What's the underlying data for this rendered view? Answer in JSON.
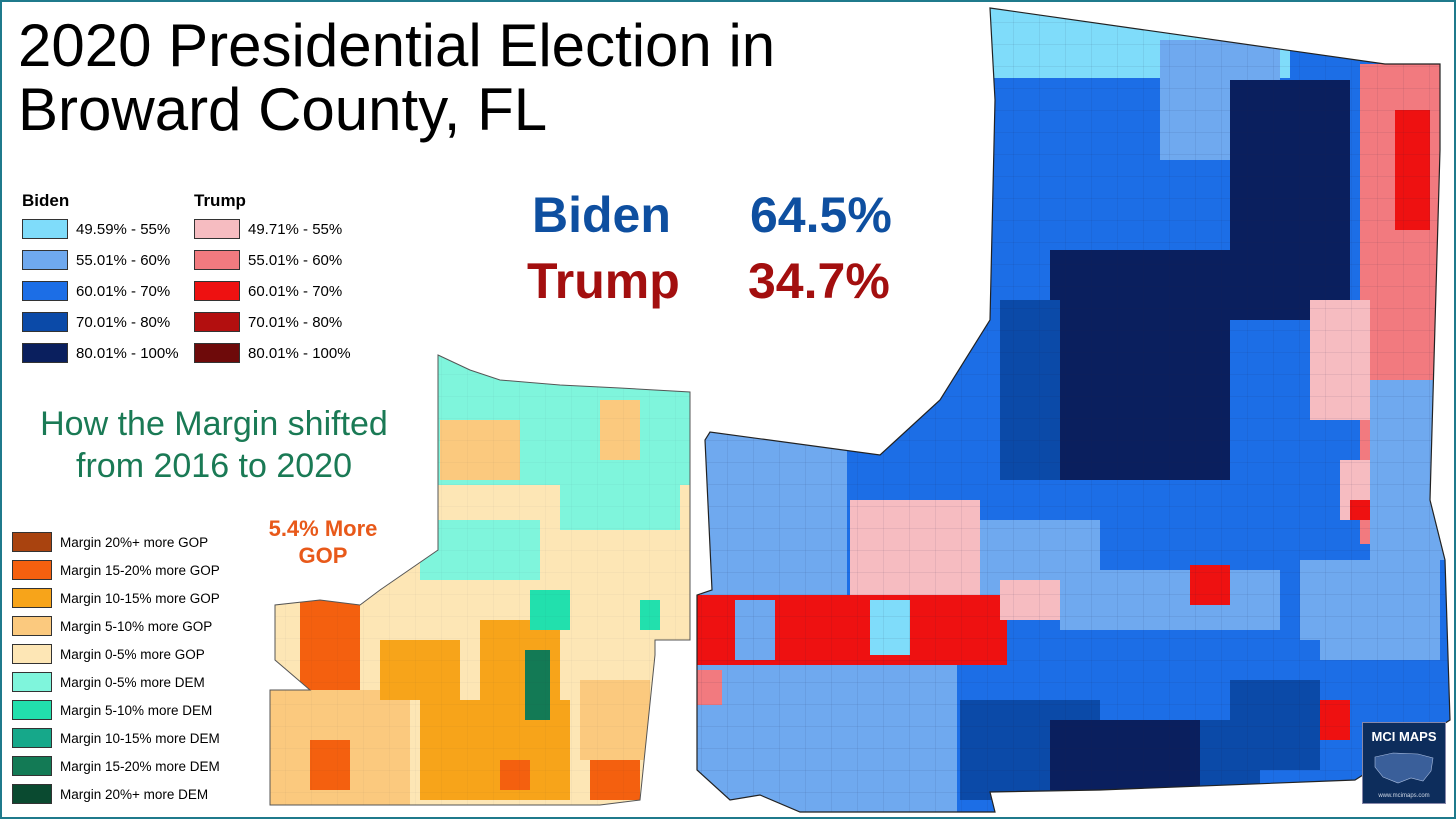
{
  "title_line1": "2020 Presidential Election in",
  "title_line2": "Broward County, FL",
  "legend": {
    "biden_header": "Biden",
    "trump_header": "Trump",
    "biden": [
      {
        "label": "49.59% - 55%",
        "color": "#7fdcfa"
      },
      {
        "label": "55.01% - 60%",
        "color": "#6fa9ef"
      },
      {
        "label": "60.01% - 70%",
        "color": "#1c6ee6"
      },
      {
        "label": "70.01% - 80%",
        "color": "#0b4aa8"
      },
      {
        "label": "80.01% - 100%",
        "color": "#0a1f5e"
      }
    ],
    "trump": [
      {
        "label": "49.71% - 55%",
        "color": "#f6bcc1"
      },
      {
        "label": "55.01% - 60%",
        "color": "#f27a7f"
      },
      {
        "label": "60.01% - 70%",
        "color": "#ee1111"
      },
      {
        "label": "70.01% - 80%",
        "color": "#b30f0f"
      },
      {
        "label": "80.01% - 100%",
        "color": "#6e0a0a"
      }
    ]
  },
  "results": {
    "biden_name": "Biden",
    "biden_pct": "64.5%",
    "biden_color": "#0e4fa0",
    "trump_name": "Trump",
    "trump_pct": "34.7%",
    "trump_color": "#a30f0f"
  },
  "shift": {
    "title_line1": "How the Margin shifted",
    "title_line2": "from 2016 to 2020",
    "note_line1": "5.4% More",
    "note_line2": "GOP",
    "items": [
      {
        "label": "Margin 20%+ more GOP",
        "color": "#a9430f"
      },
      {
        "label": "Margin 15-20% more GOP",
        "color": "#f4600f"
      },
      {
        "label": "Margin 10-15% more GOP",
        "color": "#f7a41a"
      },
      {
        "label": "Margin 5-10% more GOP",
        "color": "#fbc97e"
      },
      {
        "label": "Margin 0-5% more GOP",
        "color": "#fde6b5"
      },
      {
        "label": "Margin 0-5% more DEM",
        "color": "#7ff5dc"
      },
      {
        "label": "Margin 5-10% more DEM",
        "color": "#22e0ad"
      },
      {
        "label": "Margin 10-15% more DEM",
        "color": "#16a88a"
      },
      {
        "label": "Margin 15-20% more DEM",
        "color": "#137a55"
      },
      {
        "label": "Margin 20%+ more DEM",
        "color": "#0a4a30"
      }
    ]
  },
  "badge": {
    "title": "MCI MAPS",
    "url": "www.mcimaps.com"
  }
}
